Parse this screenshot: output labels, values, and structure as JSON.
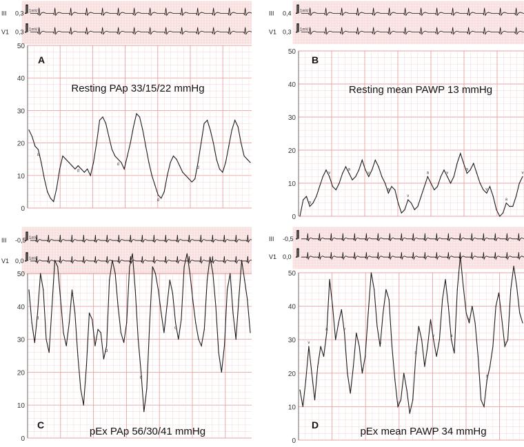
{
  "chart_data": [
    {
      "type": "line",
      "panel": "A",
      "title": "Resting PAp 33/15/22 mmHg",
      "ylim": [
        0,
        50
      ],
      "yticks": [
        "0",
        "10",
        "20",
        "30",
        "40",
        "50"
      ],
      "ecg_leads": [
        {
          "name": "III",
          "gain": "0,3"
        },
        {
          "name": "V1",
          "gain": "0,3"
        }
      ],
      "calibration": "1mV",
      "series": [
        {
          "values": [
            24,
            22,
            19,
            18,
            14,
            9,
            5,
            3,
            2,
            6,
            12,
            16,
            15,
            14,
            13,
            12,
            13,
            12,
            11,
            12,
            10,
            14,
            20,
            27,
            28,
            26,
            22,
            18,
            16,
            15,
            14,
            12,
            16,
            20,
            25,
            29,
            28,
            24,
            19,
            14,
            10,
            7,
            4,
            3,
            5,
            10,
            14,
            16,
            15,
            13,
            11,
            10,
            9,
            8,
            9,
            14,
            20,
            26,
            27,
            24,
            20,
            15,
            12,
            11,
            14,
            19,
            24,
            27,
            25,
            20,
            16,
            15,
            14
          ]
        }
      ],
      "point_labels": [
        "d",
        "d",
        "d",
        "d",
        "d"
      ],
      "series_labels": "d"
    },
    {
      "type": "line",
      "panel": "B",
      "title": "Resting mean PAWP 13 mmHg",
      "ylim": [
        0,
        50
      ],
      "yticks": [
        "0",
        "10",
        "20",
        "30",
        "40",
        "50"
      ],
      "ecg_leads": [
        {
          "name": "III",
          "gain": "0,4"
        },
        {
          "name": "V1",
          "gain": "0,3"
        }
      ],
      "calibration": "1mV",
      "series": [
        {
          "values": [
            0,
            5,
            6,
            3,
            4,
            6,
            9,
            12,
            14,
            12,
            9,
            8,
            10,
            13,
            15,
            13,
            11,
            12,
            14,
            17,
            14,
            12,
            14,
            17,
            15,
            12,
            10,
            7,
            9,
            8,
            4,
            1,
            2,
            5,
            4,
            2,
            3,
            6,
            9,
            12,
            10,
            8,
            9,
            12,
            14,
            12,
            10,
            12,
            16,
            19,
            16,
            13,
            14,
            16,
            13,
            10,
            8,
            7,
            9,
            6,
            2,
            0,
            1,
            4,
            3,
            3,
            6,
            10,
            12
          ]
        }
      ],
      "point_labels": [
        "a",
        "v",
        "a",
        "v",
        "a",
        "v",
        "a",
        "v",
        "a",
        "v",
        "a",
        "v"
      ]
    },
    {
      "type": "line",
      "panel": "C",
      "title": "pEx PAp 56/30/41 mmHg",
      "ylim": [
        0,
        50
      ],
      "yticks": [
        "0",
        "10",
        "20",
        "30",
        "40",
        "50"
      ],
      "ecg_leads": [
        {
          "name": "III",
          "gain": "-0,5"
        },
        {
          "name": "V1",
          "gain": "0,0"
        }
      ],
      "calibration": "1mV",
      "series": [
        {
          "values": [
            45,
            35,
            29,
            38,
            50,
            45,
            30,
            26,
            40,
            54,
            52,
            42,
            32,
            28,
            35,
            45,
            38,
            25,
            15,
            10,
            22,
            38,
            36,
            28,
            33,
            32,
            24,
            28,
            48,
            54,
            50,
            40,
            32,
            29,
            35,
            52,
            56,
            45,
            30,
            20,
            8,
            15,
            35,
            52,
            50,
            45,
            38,
            32,
            40,
            48,
            44,
            35,
            30,
            36,
            52,
            56,
            50,
            42,
            35,
            30,
            28,
            33,
            48,
            55,
            50,
            40,
            26,
            20,
            28,
            45,
            50,
            38,
            30,
            42,
            54,
            48,
            42,
            32
          ]
        }
      ],
      "point_labels": [
        "d",
        "d",
        "d",
        "d",
        "d",
        "d"
      ]
    },
    {
      "type": "line",
      "panel": "D",
      "title": "pEx mean PAWP 34 mmHg",
      "ylim": [
        0,
        50
      ],
      "yticks": [
        "0",
        "10",
        "20",
        "30",
        "40",
        "50"
      ],
      "ecg_leads": [
        {
          "name": "III",
          "gain": "-0,5"
        },
        {
          "name": "V1",
          "gain": "0,0"
        }
      ],
      "calibration": "",
      "series": [
        {
          "values": [
            15,
            10,
            18,
            28,
            20,
            12,
            22,
            28,
            25,
            32,
            48,
            40,
            30,
            35,
            39,
            32,
            20,
            14,
            22,
            32,
            28,
            20,
            25,
            38,
            50,
            45,
            34,
            28,
            38,
            45,
            42,
            28,
            18,
            10,
            12,
            20,
            15,
            8,
            12,
            25,
            34,
            30,
            22,
            28,
            36,
            30,
            25,
            30,
            42,
            48,
            40,
            30,
            26,
            45,
            55,
            46,
            38,
            35,
            40,
            35,
            25,
            12,
            10,
            18,
            22,
            28,
            40,
            44,
            36,
            28,
            30,
            45,
            52,
            46,
            38,
            35
          ]
        }
      ],
      "point_labels": [
        "v",
        "a",
        "v",
        "a",
        "a",
        "v",
        "a",
        "v",
        "a",
        "v",
        "a",
        "v"
      ]
    }
  ]
}
